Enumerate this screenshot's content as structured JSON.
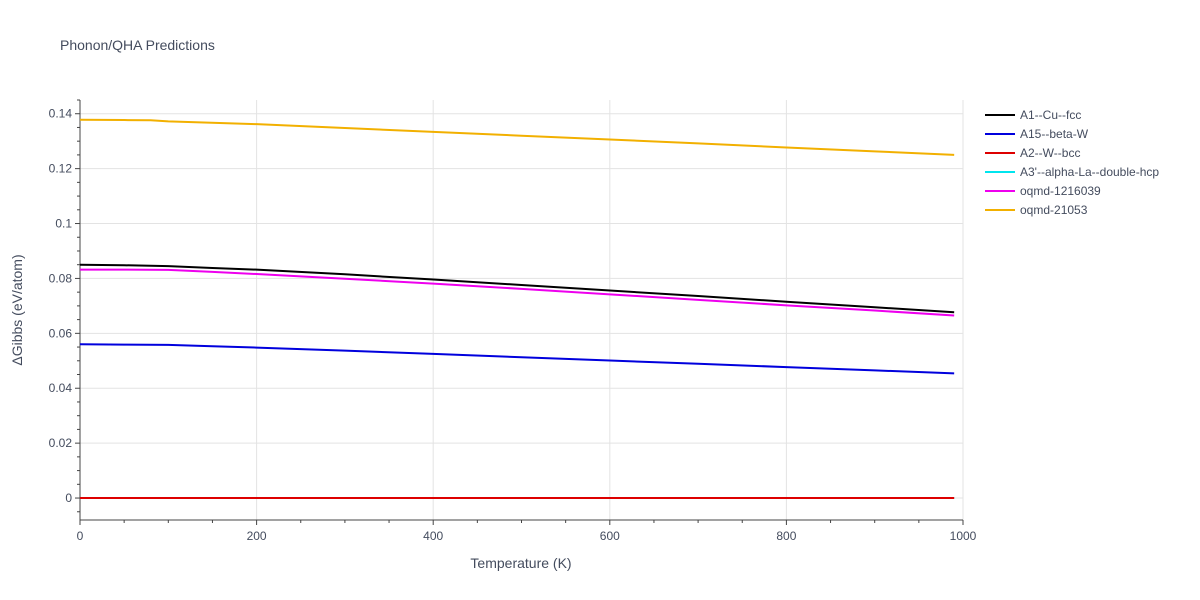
{
  "chart_data": {
    "type": "line",
    "title": "Phonon/QHA Predictions",
    "xlabel": "Temperature (K)",
    "ylabel": "ΔGibbs (eV/atom)",
    "xlim": [
      0,
      1000
    ],
    "ylim": [
      -0.008,
      0.145
    ],
    "x_ticks": [
      0,
      200,
      400,
      600,
      800,
      1000
    ],
    "y_ticks": [
      0,
      0.02,
      0.04,
      0.06,
      0.08,
      0.1,
      0.12,
      0.14
    ],
    "grid": true,
    "legend_position": "right",
    "series": [
      {
        "name": "A1--Cu--fcc",
        "color": "#000000",
        "x": [
          0,
          50,
          100,
          150,
          200,
          300,
          400,
          500,
          600,
          700,
          800,
          900,
          990
        ],
        "y": [
          0.085,
          0.0848,
          0.0845,
          0.0838,
          0.0832,
          0.0815,
          0.0796,
          0.0776,
          0.0756,
          0.0736,
          0.0715,
          0.0695,
          0.0677
        ]
      },
      {
        "name": "A15--beta-W",
        "color": "#0000dd",
        "x": [
          0,
          50,
          100,
          150,
          200,
          300,
          400,
          500,
          600,
          700,
          800,
          900,
          990
        ],
        "y": [
          0.056,
          0.0559,
          0.0558,
          0.0553,
          0.0548,
          0.0537,
          0.0525,
          0.0513,
          0.0501,
          0.0489,
          0.0477,
          0.0465,
          0.0454
        ]
      },
      {
        "name": "A2--W--bcc",
        "color": "#dd0000",
        "x": [
          0,
          200,
          400,
          600,
          800,
          990
        ],
        "y": [
          0,
          0,
          0,
          0,
          0,
          0
        ]
      },
      {
        "name": "A3'--alpha-La--double-hcp",
        "color": "#00e5ee",
        "x": [
          0,
          200,
          400,
          600,
          800,
          990
        ],
        "y": [
          0,
          0,
          0,
          0,
          0,
          0
        ]
      },
      {
        "name": "oqmd-1216039",
        "color": "#ee00ee",
        "x": [
          0,
          50,
          100,
          150,
          200,
          300,
          400,
          500,
          600,
          700,
          800,
          900,
          990
        ],
        "y": [
          0.0832,
          0.0832,
          0.0831,
          0.0824,
          0.0816,
          0.0799,
          0.0781,
          0.0762,
          0.0742,
          0.0722,
          0.0702,
          0.0683,
          0.0665
        ]
      },
      {
        "name": "oqmd-21053",
        "color": "#f2b000",
        "x": [
          0,
          50,
          80,
          100,
          200,
          300,
          400,
          500,
          600,
          700,
          800,
          900,
          990
        ],
        "y": [
          0.1378,
          0.1377,
          0.1376,
          0.1372,
          0.1362,
          0.1348,
          0.1334,
          0.132,
          0.1306,
          0.1292,
          0.1277,
          0.1263,
          0.125
        ]
      }
    ]
  }
}
